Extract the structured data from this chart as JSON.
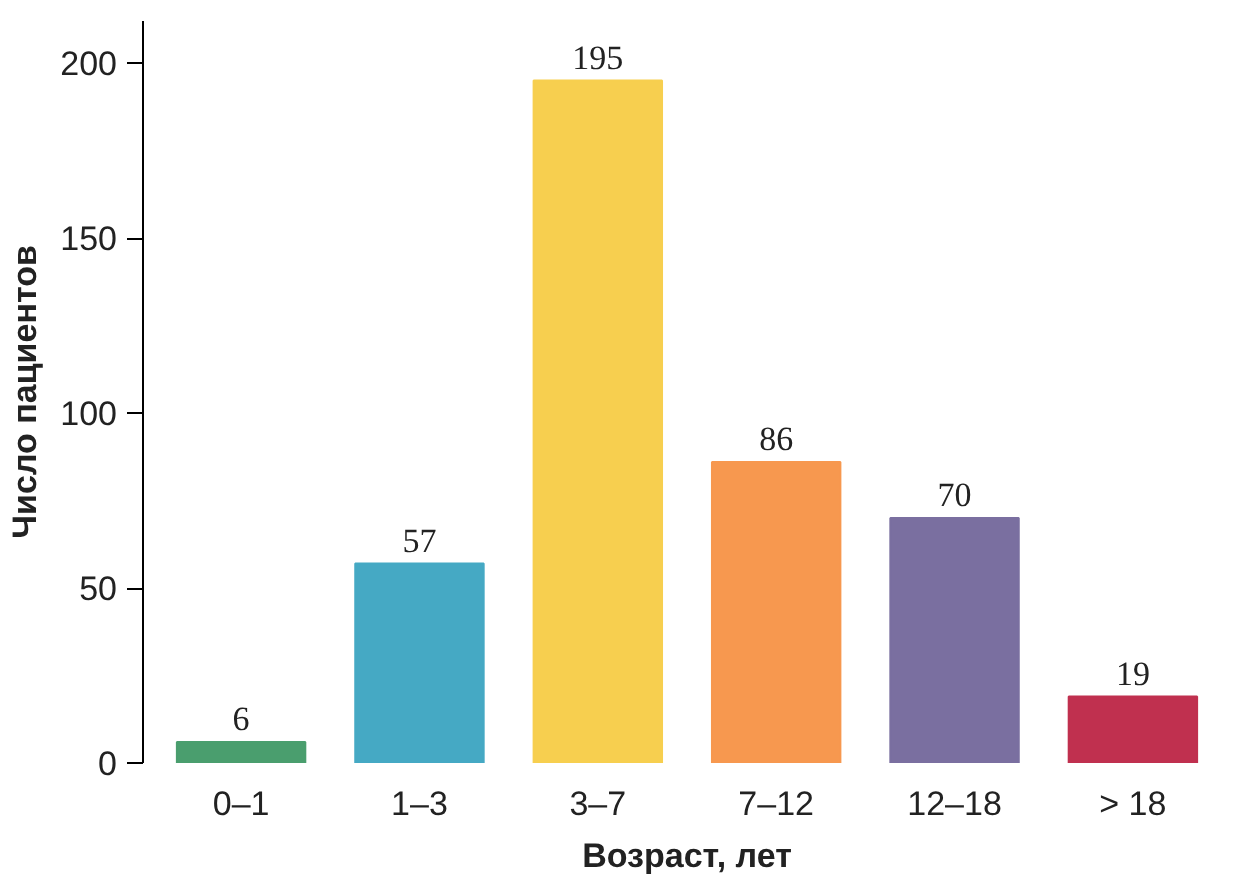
{
  "chart_data": {
    "type": "bar",
    "xlabel": "Возраст, лет",
    "ylabel": "Число пациентов",
    "categories": [
      "0–1",
      "1–3",
      "3–7",
      "7–12",
      "12–18",
      "> 18"
    ],
    "values": [
      6,
      57,
      195,
      86,
      70,
      19
    ],
    "colors": [
      "#4a9e6e",
      "#45a9c4",
      "#f7cf4f",
      "#f7984f",
      "#7a6fa0",
      "#c0304f"
    ],
    "ylim": [
      0,
      212
    ],
    "yticks": [
      0,
      50,
      100,
      150,
      200
    ],
    "grid": false,
    "data_labels": true
  }
}
